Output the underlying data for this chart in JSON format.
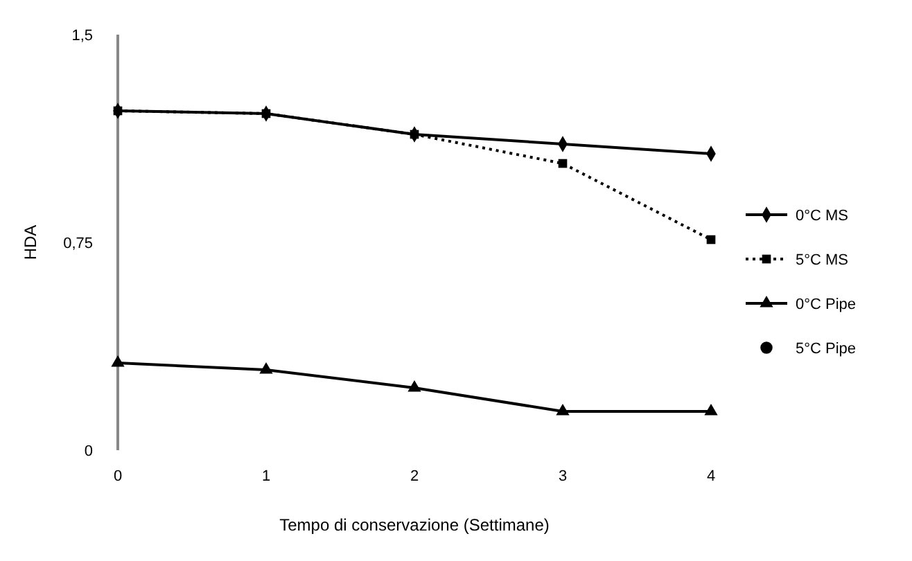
{
  "chart_data": {
    "type": "line",
    "xlabel": "Tempo di conservazione (Settimane)",
    "ylabel": "HDA",
    "x": [
      0,
      1,
      2,
      3,
      4
    ],
    "xlim": [
      0,
      4
    ],
    "xticks": [
      0,
      1,
      2,
      3,
      4
    ],
    "ylim": [
      0,
      1.5
    ],
    "yticks": [
      0,
      {
        "value": 0.75,
        "label": "0,75"
      },
      {
        "value": 1.5,
        "label": "1,5"
      }
    ],
    "grid": false,
    "legend": "right",
    "series": [
      {
        "name": "0°C MS",
        "color": "#000000",
        "marker": "diamond",
        "line_style": "solid",
        "values": [
          1.225,
          1.215,
          1.14,
          1.105,
          1.07
        ]
      },
      {
        "name": "5°C MS",
        "color": "#000000",
        "marker": "square",
        "line_style": "dotted",
        "values": [
          1.225,
          1.215,
          1.14,
          1.035,
          0.76
        ]
      },
      {
        "name": "0°C Pipe",
        "color": "#000000",
        "marker": "triangle",
        "line_style": "solid",
        "values": [
          0.315,
          0.29,
          0.225,
          0.14,
          0.14
        ]
      },
      {
        "name": "5°C Pipe",
        "color": "#000000",
        "marker": "circle",
        "line_style": "none",
        "values": [
          null,
          null,
          null,
          null,
          null
        ]
      }
    ]
  }
}
